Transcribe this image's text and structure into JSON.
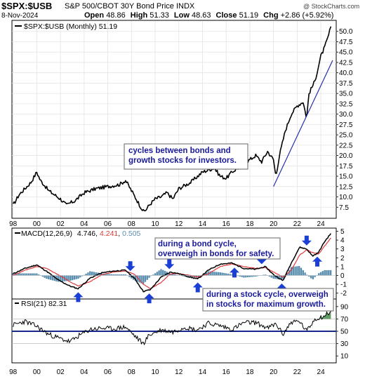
{
  "header": {
    "symbol": "$SPX:$USB",
    "description": "S&P 500/CBOT 30Y Bond Price INDX",
    "watermark": "@ StockCharts.com",
    "date": "8-Nov-2024",
    "open_label": "Open",
    "open": "48.86",
    "high_label": "High",
    "high": "51.33",
    "low_label": "Low",
    "low": "48.63",
    "close_label": "Close",
    "close": "51.19",
    "chg_label": "Chg",
    "chg": "+2.86 (+5.92%)"
  },
  "colors": {
    "price": "#000000",
    "trendline": "#2233aa",
    "macd": "#000000",
    "signal": "#e03a3a",
    "histogram": "#5a8fb0",
    "arrow": "#1a3fd6",
    "rsi_line": "#000000",
    "rsi_area": "#2e7d32",
    "rsi_ref": "#1a2a8a",
    "accent_text": "#1a1a9c",
    "macd_hist_label": "#5a8fb0"
  },
  "chart_data": [
    {
      "type": "line",
      "legend": "$SPX:$USB (Monthly) 51.19",
      "x_ticks": [
        "98",
        "00",
        "02",
        "04",
        "06",
        "08",
        "10",
        "12",
        "14",
        "16",
        "18",
        "20",
        "22",
        "24"
      ],
      "y_ticks": [
        "50.0",
        "47.5",
        "45.0",
        "42.5",
        "40.0",
        "37.5",
        "35.0",
        "32.5",
        "30.0",
        "27.5",
        "25.0",
        "22.5",
        "20.0",
        "17.5",
        "15.0",
        "12.5",
        "10.0",
        "7.5"
      ],
      "ylim": [
        5.0,
        52.5
      ],
      "x": [
        1998.0,
        1998.5,
        1999.0,
        1999.5,
        2000.0,
        2000.3,
        2000.6,
        2001.0,
        2001.5,
        2002.0,
        2002.5,
        2002.8,
        2003.2,
        2003.6,
        2004.0,
        2005.0,
        2006.0,
        2007.0,
        2007.5,
        2008.0,
        2008.5,
        2009.0,
        2009.2,
        2009.5,
        2010.0,
        2010.5,
        2011.0,
        2011.5,
        2012.0,
        2013.0,
        2014.0,
        2015.0,
        2015.5,
        2016.0,
        2016.5,
        2017.0,
        2018.0,
        2018.5,
        2019.0,
        2019.5,
        2020.0,
        2020.2,
        2020.5,
        2021.0,
        2021.5,
        2022.0,
        2022.5,
        2022.8,
        2023.0,
        2023.5,
        2024.0,
        2024.3,
        2024.6,
        2024.85
      ],
      "values": [
        8.0,
        10.5,
        12.0,
        13.5,
        16.0,
        14.0,
        13.0,
        11.5,
        10.5,
        9.5,
        8.0,
        8.5,
        9.0,
        10.0,
        11.0,
        12.0,
        12.5,
        13.0,
        14.0,
        11.5,
        9.0,
        6.5,
        6.8,
        8.0,
        9.5,
        10.0,
        11.0,
        9.5,
        12.0,
        13.5,
        16.0,
        17.0,
        15.0,
        14.5,
        16.0,
        17.0,
        19.0,
        20.0,
        18.5,
        21.0,
        19.0,
        15.0,
        20.0,
        26.0,
        30.0,
        32.0,
        33.0,
        29.0,
        35.0,
        38.0,
        44.0,
        46.0,
        48.5,
        51.19
      ],
      "trendline": {
        "x": [
          2020.0,
          2025.0
        ],
        "values": [
          12.5,
          43.0
        ]
      },
      "annotations": [
        "cycles between bonds and growth stocks for investors."
      ]
    },
    {
      "type": "line",
      "legend": "MACD(12,26,9)",
      "macd_value": "4.746",
      "signal_value": "4.241",
      "hist_value": "0.505",
      "y_ticks": [
        "5",
        "4",
        "3",
        "2",
        "1",
        "0",
        "-1",
        "-2"
      ],
      "ylim": [
        -2.5,
        5.2
      ],
      "x": [
        1998.0,
        1999.0,
        2000.0,
        2000.8,
        2001.8,
        2002.8,
        2003.5,
        2004.5,
        2005.5,
        2006.5,
        2007.5,
        2008.3,
        2009.0,
        2009.6,
        2010.5,
        2011.3,
        2012.0,
        2013.0,
        2013.6,
        2014.5,
        2015.5,
        2016.5,
        2017.5,
        2018.5,
        2019.3,
        2020.0,
        2020.8,
        2021.5,
        2022.2,
        2022.8,
        2023.3,
        2023.8,
        2024.3,
        2024.85
      ],
      "macd": [
        0.2,
        0.8,
        1.2,
        0.5,
        -0.5,
        -1.2,
        -1.5,
        -0.3,
        0.3,
        0.5,
        0.6,
        -0.4,
        -1.8,
        -1.6,
        -0.2,
        0.4,
        0.2,
        -0.2,
        -0.4,
        0.6,
        1.3,
        1.4,
        0.8,
        0.7,
        1.0,
        0.1,
        -0.6,
        1.4,
        3.2,
        3.0,
        2.2,
        2.6,
        3.8,
        4.746
      ],
      "signal": [
        0.0,
        0.6,
        1.0,
        0.8,
        0.1,
        -0.7,
        -1.2,
        -0.7,
        0.1,
        0.4,
        0.5,
        0.1,
        -1.0,
        -1.5,
        -0.8,
        0.2,
        0.2,
        0.0,
        -0.2,
        0.2,
        1.0,
        1.3,
        1.0,
        0.8,
        0.9,
        0.4,
        -0.2,
        0.6,
        2.3,
        2.9,
        2.6,
        2.4,
        3.3,
        4.241
      ],
      "annotations": [
        "during a bond cycle, overweigh in bonds for safety.",
        "during a stock cycle, overweigh in stocks for maximum growth."
      ],
      "arrows_up_x": [
        2003.5,
        2009.5,
        2013.6,
        2016.7,
        2020.7,
        2023.7
      ],
      "arrows_down_x": [
        2007.9,
        2011.2,
        2019.0,
        2022.8
      ]
    },
    {
      "type": "line",
      "legend": "RSI(21) 82.31",
      "y_ticks": [
        "90",
        "70",
        "50",
        "30",
        "10"
      ],
      "ylim": [
        0,
        100
      ],
      "reference_levels": [
        70,
        50,
        30
      ],
      "x": [
        1998.0,
        1999.0,
        2000.0,
        2001.0,
        2002.0,
        2002.8,
        2003.5,
        2004.5,
        2005.5,
        2006.5,
        2007.5,
        2008.3,
        2009.0,
        2009.5,
        2010.5,
        2011.5,
        2012.5,
        2013.5,
        2014.5,
        2015.5,
        2016.5,
        2017.5,
        2018.5,
        2019.5,
        2020.2,
        2020.8,
        2021.5,
        2022.2,
        2022.8,
        2023.5,
        2024.2,
        2024.85
      ],
      "values": [
        60,
        66,
        58,
        45,
        38,
        33,
        42,
        53,
        55,
        54,
        57,
        42,
        30,
        44,
        52,
        49,
        57,
        52,
        63,
        59,
        53,
        64,
        64,
        55,
        62,
        45,
        65,
        66,
        50,
        70,
        74,
        82.31
      ]
    }
  ]
}
